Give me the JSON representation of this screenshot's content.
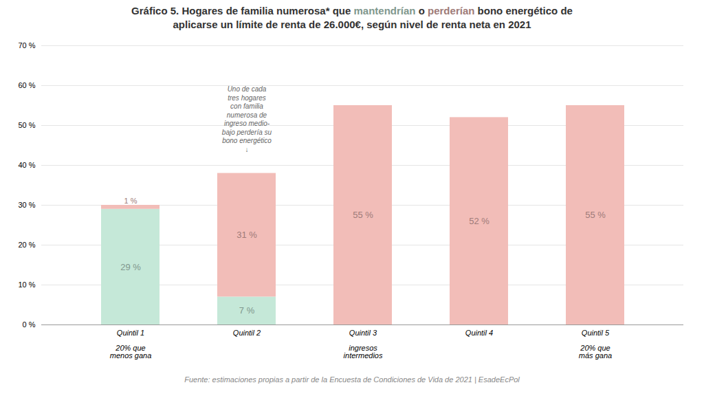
{
  "chart_data": {
    "type": "bar",
    "title": "Gráfico 5. Hogares de familia numerosa* que mantendrían o perderían bono energético de\naplicarse un límite de renta de 26.000€, según nivel de renta neta en 2021",
    "categories": [
      "Quintil 1\n\n20% que\nmenos gana",
      "Quintil 2",
      "Quintil 3\n\ningresos\nintermedios",
      "Quintil 4",
      "Quintil 5\n\n20% que\nmás gana"
    ],
    "series": [
      {
        "name": "mantendrían",
        "color": "#c5e8d8",
        "values": [
          29,
          7,
          0,
          0,
          0
        ],
        "value_labels": [
          "29 %",
          "7 %",
          null,
          null,
          null
        ]
      },
      {
        "name": "perderían",
        "color": "#f2bdb8",
        "values": [
          1,
          31,
          55,
          52,
          55
        ],
        "value_labels": [
          "1 %",
          "31 %",
          "55 %",
          "52 %",
          "55 %"
        ]
      }
    ],
    "stacked": true,
    "data_labels": true,
    "ylim": [
      0,
      70
    ],
    "yticks": [
      {
        "value": 0,
        "label": "0 %"
      },
      {
        "value": 10,
        "label": "10 %"
      },
      {
        "value": 20,
        "label": "20 %"
      },
      {
        "value": 30,
        "label": "30 %"
      },
      {
        "value": 40,
        "label": "40 %"
      },
      {
        "value": 50,
        "label": "50 %"
      },
      {
        "value": 60,
        "label": "60 %"
      },
      {
        "value": 70,
        "label": "70 %"
      }
    ],
    "grid": true,
    "annotations": [
      {
        "text": "Uno de cada\ntres hogares\ncon familia\nnumerosa de\ningreso medio-\nbajo perdería su\nbono energético\n↓",
        "x": "Quintil 2",
        "y": 60
      }
    ],
    "caption": "Fuente: estimaciones propias a partir de la Encuesta de Condiciones de Vida de 2021 | EsadeEcPol"
  }
}
